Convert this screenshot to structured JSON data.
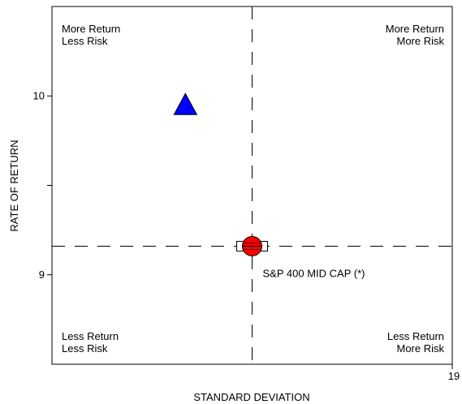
{
  "chart_data": {
    "type": "scatter",
    "xlabel": "STANDARD DEVIATION",
    "ylabel": "RATE OF RETURN",
    "xlim": [
      13.6,
      19
    ],
    "ylim": [
      8.5,
      10.5
    ],
    "x_ticks": [
      {
        "value": 19,
        "label": "19"
      }
    ],
    "y_ticks": [
      {
        "value": 9,
        "label": "9"
      },
      {
        "value": 9.5,
        "label": ""
      },
      {
        "value": 10,
        "label": "10"
      }
    ],
    "reference_lines": {
      "x": 16.3,
      "y": 9.16
    },
    "quadrant_labels": {
      "top_left": [
        "More Return",
        "Less Risk"
      ],
      "top_right": [
        "More Return",
        "More Risk"
      ],
      "bottom_left": [
        "Less Return",
        "Less Risk"
      ],
      "bottom_right": [
        "Less Return",
        "More Risk"
      ]
    },
    "points": [
      {
        "x": 15.4,
        "y": 9.95,
        "marker": "triangle",
        "color": "#0000ff",
        "label": ""
      },
      {
        "x": 16.3,
        "y": 9.16,
        "marker": "circle-box",
        "color": "#ff0000",
        "label": "S&P 400 MID CAP (*)"
      }
    ],
    "grid": false
  }
}
